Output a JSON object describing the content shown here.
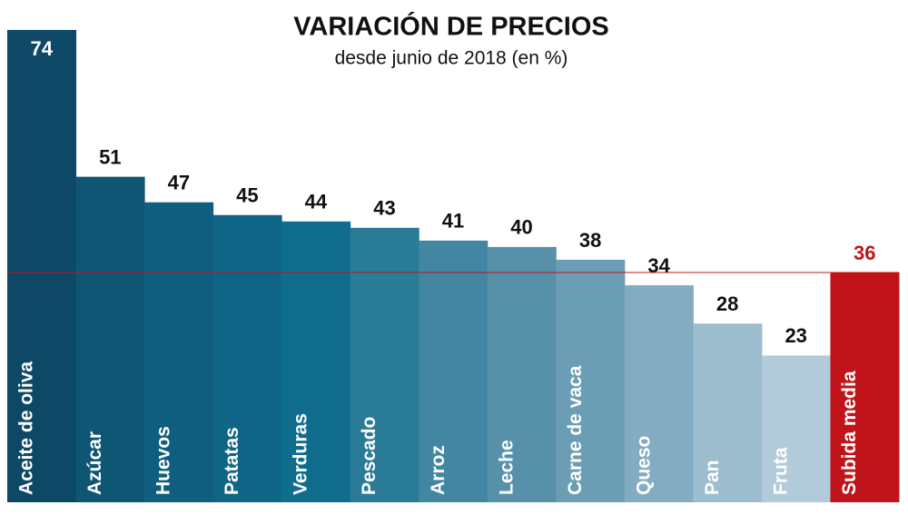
{
  "chart_data": {
    "type": "bar",
    "title": "VARIACIÓN DE PRECIOS",
    "subtitle": "desde junio de 2018 (en %)",
    "categories": [
      "Aceite de oliva",
      "Azúcar",
      "Huevos",
      "Patatas",
      "Verduras",
      "Pescado",
      "Arroz",
      "Leche",
      "Carne de vaca",
      "Queso",
      "Pan",
      "Fruta",
      "Subida media"
    ],
    "values": [
      74,
      51,
      47,
      45,
      44,
      43,
      41,
      40,
      38,
      34,
      28,
      23,
      36
    ],
    "colors": [
      "#0d4866",
      "#0f5574",
      "#0f5e7f",
      "#0f6586",
      "#106d8d",
      "#2a7b98",
      "#4286a1",
      "#5691a9",
      "#6b9eb4",
      "#83acc1",
      "#9cbdce",
      "#b1cbda",
      "#c0141a"
    ],
    "reference_color": "#c0141a"
  }
}
